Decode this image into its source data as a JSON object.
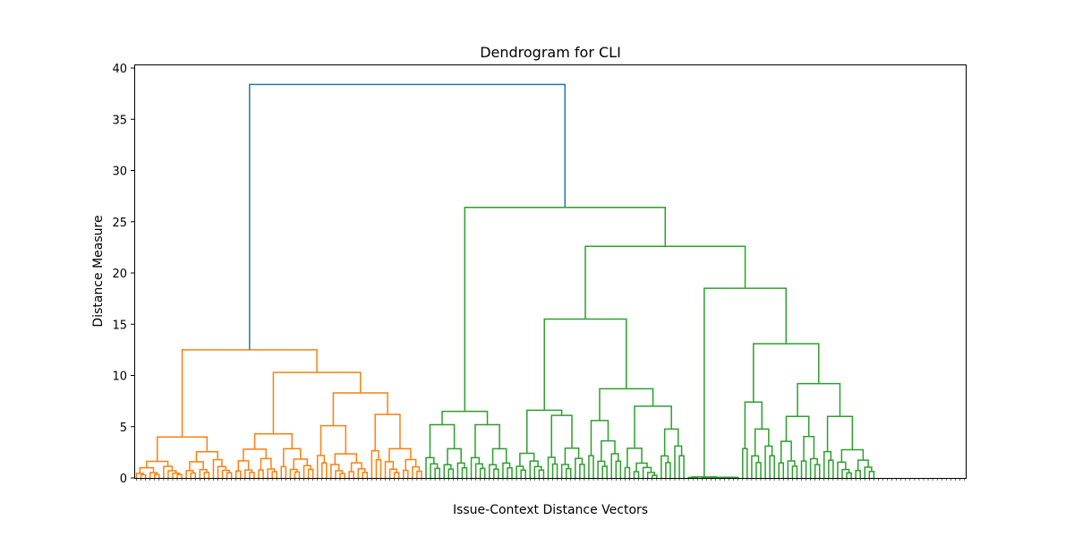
{
  "chart_data": {
    "type": "dendrogram",
    "title": "Dendrogram for CLI",
    "xlabel": "Issue-Context Distance Vectors",
    "ylabel": "Distance Measure",
    "ylim": [
      0,
      40
    ],
    "yticks": [
      0,
      5,
      10,
      15,
      20,
      25,
      30,
      35,
      40
    ],
    "leaf_count": 184,
    "leaf_labels_legible": false,
    "colors": {
      "cluster_orange": "#ff7f0e",
      "cluster_green": "#2ca02c",
      "link_above_threshold": "#1f77b4"
    },
    "clusters": [
      {
        "color": "orange",
        "leaf_count": 64,
        "merge_height": 12.5
      },
      {
        "color": "green",
        "leaf_count": 120,
        "merge_height": 26.4
      }
    ],
    "root_merge_height": 38.4,
    "major_merge_heights": [
      38.4,
      26.4,
      22.6,
      18.5,
      15.5,
      13.1,
      12.5,
      10.3,
      9.2,
      8.7,
      8.3,
      7.4,
      7.0,
      6.6,
      6.5,
      6.2,
      6.1,
      6.0,
      5.6,
      5.2,
      5.1,
      4.4,
      4.3,
      4.1,
      4.0
    ]
  }
}
